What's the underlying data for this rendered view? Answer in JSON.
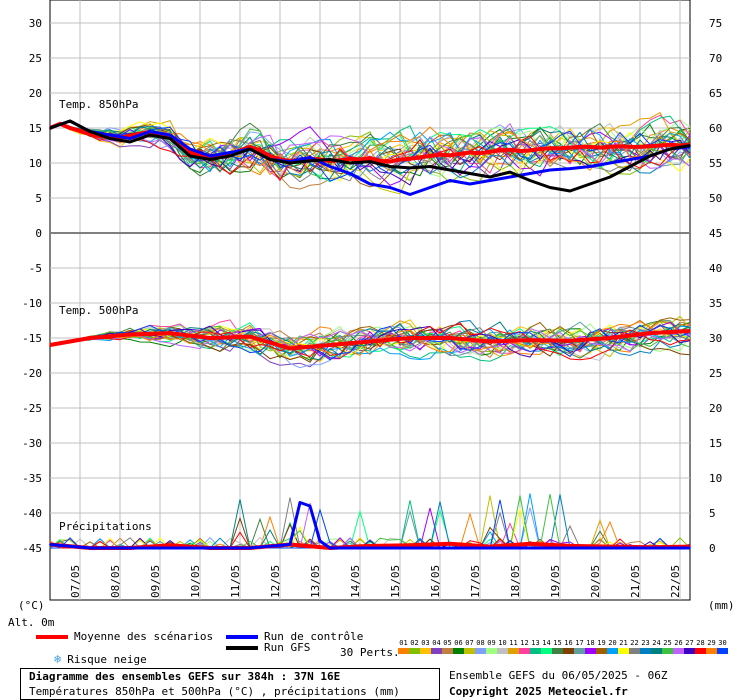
{
  "chart_data": {
    "type": "line",
    "title": "Diagramme des ensembles GEFS sur 384h : 37N 16E",
    "subtitle": "Températures 850hPa et 500hPa (°C) , précipitations (mm)",
    "x_dates": [
      "07/05",
      "08/05",
      "09/05",
      "10/05",
      "11/05",
      "12/05",
      "13/05",
      "14/05",
      "15/05",
      "16/05",
      "17/05",
      "18/05",
      "19/05",
      "20/05",
      "21/05",
      "22/05"
    ],
    "x_range_hours": [
      0,
      384
    ],
    "y_left_label": "(°C)",
    "y_left_ticks": [
      30,
      25,
      20,
      15,
      10,
      5,
      0,
      -5,
      -10,
      -15,
      -20,
      -25,
      -30,
      -35,
      -40,
      -45
    ],
    "y_right_label": "(mm)",
    "y_right_ticks": [
      75,
      70,
      65,
      60,
      55,
      50,
      45,
      40,
      35,
      30,
      25,
      20,
      15,
      10,
      5,
      0
    ],
    "alt_label": "Alt. 0m",
    "panels": [
      {
        "name": "Temp. 850hPa",
        "ylim": [
          0,
          30
        ]
      },
      {
        "name": "Temp. 500hPa",
        "ylim": [
          -20,
          -5
        ]
      },
      {
        "name": "Précipitations",
        "ylim": [
          0,
          20
        ],
        "unit": "mm"
      }
    ],
    "series": [
      {
        "name": "Moyenne des scénarios",
        "color": "#ff0000",
        "panel": "Temp. 850hPa",
        "x": [
          0,
          6,
          12,
          18,
          24,
          30,
          36,
          42,
          48,
          54,
          60,
          66,
          72,
          78,
          84,
          90,
          96,
          102,
          108,
          114,
          120,
          126,
          132,
          138,
          144,
          150,
          156,
          162,
          168,
          174,
          180,
          186,
          192,
          198,
          204,
          210,
          216,
          222,
          228,
          234,
          240,
          246,
          252,
          258,
          264,
          270,
          276,
          282,
          288,
          294,
          300,
          306,
          312,
          318,
          324,
          330,
          336,
          342,
          348,
          354,
          360,
          366,
          372,
          378,
          384
        ],
        "values": [
          15,
          15.6,
          15,
          14.6,
          14.2,
          13.8,
          14,
          13.6,
          13.9,
          14.2,
          14.4,
          14.1,
          13.8,
          12.6,
          11.5,
          11.2,
          11,
          11,
          11.2,
          11.8,
          12.3,
          11.8,
          11,
          10.5,
          10.3,
          10.4,
          10.6,
          10.5,
          10.3,
          10.4,
          10.6,
          10.5,
          10.7,
          10.3,
          10.2,
          10.5,
          10.6,
          10.8,
          11,
          11.2,
          11.1,
          11.3,
          11.5,
          11.4,
          11.6,
          11.8,
          11.9,
          11.7,
          11.8,
          12,
          12.1,
          12.1,
          12.2,
          12.3,
          12.3,
          12.2,
          12.3,
          12.4,
          12.3,
          12.3,
          12.4,
          12.5,
          12.6,
          12.5,
          12.6
        ]
      },
      {
        "name": "Run de contrôle",
        "color": "#0000ff",
        "panel": "Temp. 850hPa",
        "x": [
          0,
          12,
          24,
          36,
          48,
          60,
          72,
          84,
          96,
          108,
          120,
          132,
          144,
          156,
          168,
          180,
          192,
          204,
          216,
          228,
          240,
          252,
          264,
          276,
          288,
          300,
          312,
          324,
          336,
          348,
          360,
          372,
          384
        ],
        "values": [
          15,
          16,
          14.5,
          14,
          13.5,
          14.5,
          14,
          12,
          11,
          11.5,
          12,
          10.5,
          10.2,
          10.8,
          9.5,
          8.5,
          7,
          6.5,
          5.5,
          6.5,
          7.5,
          7,
          7.5,
          8,
          8.5,
          9,
          9.2,
          9.5,
          10,
          10.5,
          11,
          12,
          12.3
        ]
      },
      {
        "name": "Run GFS",
        "color": "#000000",
        "panel": "Temp. 850hPa",
        "x": [
          0,
          12,
          24,
          36,
          48,
          60,
          72,
          84,
          96,
          108,
          120,
          132,
          144,
          156,
          168,
          180,
          192,
          204,
          216,
          228,
          240,
          252,
          264,
          276,
          288,
          300,
          312,
          324,
          336,
          348,
          360,
          372,
          384
        ],
        "values": [
          15,
          16,
          14.5,
          13.5,
          13,
          14,
          13.5,
          11,
          10.5,
          11,
          12,
          10.5,
          10,
          10.3,
          10.5,
          10,
          10.2,
          9.5,
          9.3,
          9.5,
          9,
          8.5,
          8,
          8.7,
          7.5,
          6.5,
          6,
          7,
          8,
          9.5,
          11,
          12,
          12.5
        ]
      },
      {
        "name": "Moyenne des scénarios",
        "color": "#ff0000",
        "panel": "Temp. 500hPa",
        "x": [
          0,
          24,
          48,
          72,
          96,
          120,
          144,
          168,
          192,
          216,
          240,
          264,
          288,
          312,
          336,
          360,
          384
        ],
        "values": [
          -16,
          -15,
          -14.5,
          -14.3,
          -15,
          -14.8,
          -16.5,
          -16,
          -15.5,
          -15,
          -15,
          -15.5,
          -15.3,
          -15.4,
          -15,
          -14.3,
          -14
        ]
      },
      {
        "name": "Moyenne des scénarios",
        "color": "#ff0000",
        "panel": "Précipitations",
        "x": [
          0,
          24,
          48,
          72,
          96,
          120,
          144,
          168,
          192,
          216,
          240,
          264,
          288,
          312,
          336,
          360,
          384
        ],
        "values": [
          0.5,
          0,
          0,
          0.4,
          0,
          0,
          0.5,
          0,
          0.3,
          0.4,
          0.6,
          0.2,
          0.6,
          0.3,
          0.2,
          0.1,
          0.2
        ]
      },
      {
        "name": "Run de contrôle",
        "color": "#0000ff",
        "panel": "Précipitations",
        "x": [
          0,
          24,
          48,
          72,
          96,
          120,
          144,
          150,
          156,
          162,
          168,
          192,
          216,
          240,
          264,
          288,
          312,
          336,
          360,
          384
        ],
        "values": [
          0.5,
          0,
          0,
          0,
          0,
          0,
          0.5,
          6.5,
          6,
          1,
          0,
          0,
          0,
          0,
          0,
          0,
          0,
          0,
          0,
          0
        ]
      }
    ]
  },
  "legend": {
    "mean_label": "Moyenne des scénarios",
    "mean_color": "#ff0000",
    "control_label": "Run de contrôle",
    "control_color": "#0000ff",
    "gfs_label": "Run GFS",
    "gfs_color": "#000000",
    "snow_label": "Risque neige",
    "snow_icon": "snowflake-icon",
    "perts_label": "30 Perts.",
    "pert_numbers": [
      "01",
      "02",
      "03",
      "04",
      "05",
      "06",
      "07",
      "08",
      "09",
      "10",
      "11",
      "12",
      "13",
      "14",
      "15",
      "16",
      "17",
      "18",
      "19",
      "20",
      "21",
      "22",
      "23",
      "24",
      "25",
      "26",
      "27",
      "28",
      "29",
      "30"
    ],
    "pert_colors": [
      "#ff8000",
      "#80c000",
      "#ffc000",
      "#8040c0",
      "#c08040",
      "#008000",
      "#c0c000",
      "#80a0ff",
      "#a0ff80",
      "#c0c0c0",
      "#e0a000",
      "#ff40a0",
      "#00c080",
      "#00ff80",
      "#408040",
      "#804000",
      "#60a0a0",
      "#a000ff",
      "#a06000",
      "#00a0ff",
      "#ffff00",
      "#808080",
      "#0080c0",
      "#008080",
      "#40c040",
      "#c060ff",
      "#4000c0",
      "#ff0000",
      "#ff8000",
      "#0040ff"
    ]
  },
  "footer": {
    "title": "Diagramme des ensembles GEFS sur 384h : 37N 16E",
    "subtitle": "Températures 850hPa et 500hPa (°C) , précipitations (mm)",
    "run": "Ensemble GEFS du 06/05/2025 - 06Z",
    "copyright": "Copyright 2025 Meteociel.fr"
  }
}
